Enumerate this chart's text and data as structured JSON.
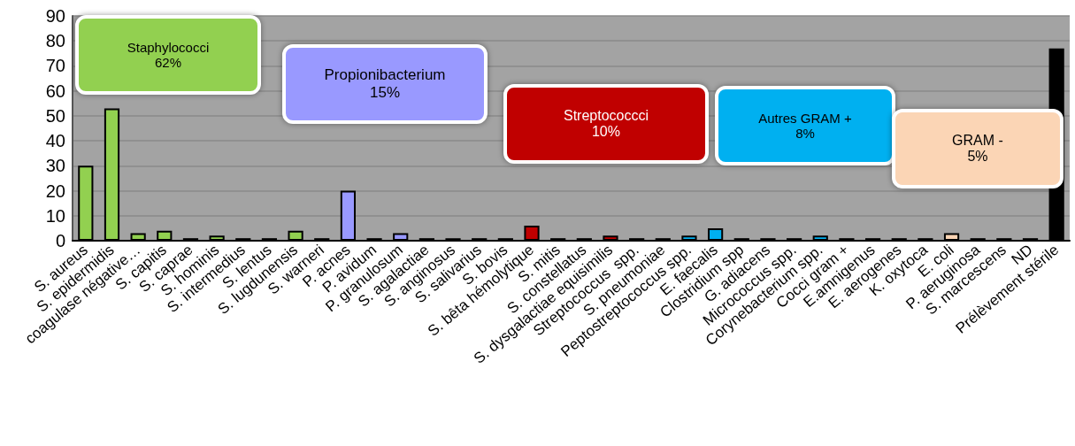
{
  "chart_data": {
    "type": "bar",
    "categories": [
      "S. aureus",
      "S. epidermidis",
      "coagulase négative…",
      "S. capitis",
      "S. caprae",
      "S. hominis",
      "S. intermedius",
      "S. lentus",
      "S. lugdunensis",
      "S. warneri",
      "P. acnes",
      "P. avidum",
      "P. granulosum",
      "S. agalactiae",
      "S. anginosus",
      "S. salivarius",
      "S. bovis",
      "S. bêta hémolytique",
      "S. mitis",
      "S. constellatus",
      "S. dysgalactiae equisimilis",
      "Streptococcus  spp.",
      "S. pneumoniae",
      "Peptostreptococcus spp.",
      "E. faecalis",
      "Clostridium spp",
      "G. adiacens",
      "Micrococcus spp.",
      "Corynebacterium spp.",
      "Cocci gram +",
      "E.amnigenus",
      "E. aerogenes",
      "K. oxytoca",
      "E. coli",
      "P. aeruginosa",
      "S. marcescens",
      "ND",
      "Prélèvement stérile"
    ],
    "values": [
      30,
      53,
      3,
      4,
      1,
      2,
      1,
      1,
      4,
      1,
      20,
      1,
      3,
      1,
      1,
      1,
      1,
      6,
      1,
      1,
      2,
      1,
      1,
      2,
      5,
      1,
      1,
      1,
      2,
      1,
      1,
      1,
      1,
      3,
      1,
      1,
      1,
      77
    ],
    "colors": [
      "#92d050",
      "#92d050",
      "#92d050",
      "#92d050",
      "#000000",
      "#92d050",
      "#000000",
      "#000000",
      "#92d050",
      "#000000",
      "#9999ff",
      "#000000",
      "#9999ff",
      "#000000",
      "#000000",
      "#000000",
      "#000000",
      "#c00000",
      "#000000",
      "#000000",
      "#c00000",
      "#000000",
      "#000000",
      "#00b0f0",
      "#00b0f0",
      "#000000",
      "#000000",
      "#000000",
      "#00b0f0",
      "#000000",
      "#000000",
      "#000000",
      "#000000",
      "#fbd5b5",
      "#000000",
      "#000000",
      "#000000",
      "#000000"
    ],
    "ylim": [
      0,
      90
    ],
    "yticks": [
      0,
      10,
      20,
      30,
      40,
      50,
      60,
      70,
      80,
      90
    ],
    "grid": "y",
    "annotations": [
      "Staphylococci\n62%",
      "Propionibacterium\n15%",
      "Streptococcci\n10%",
      "Autres GRAM +\n8%",
      "GRAM -\n5%"
    ]
  }
}
